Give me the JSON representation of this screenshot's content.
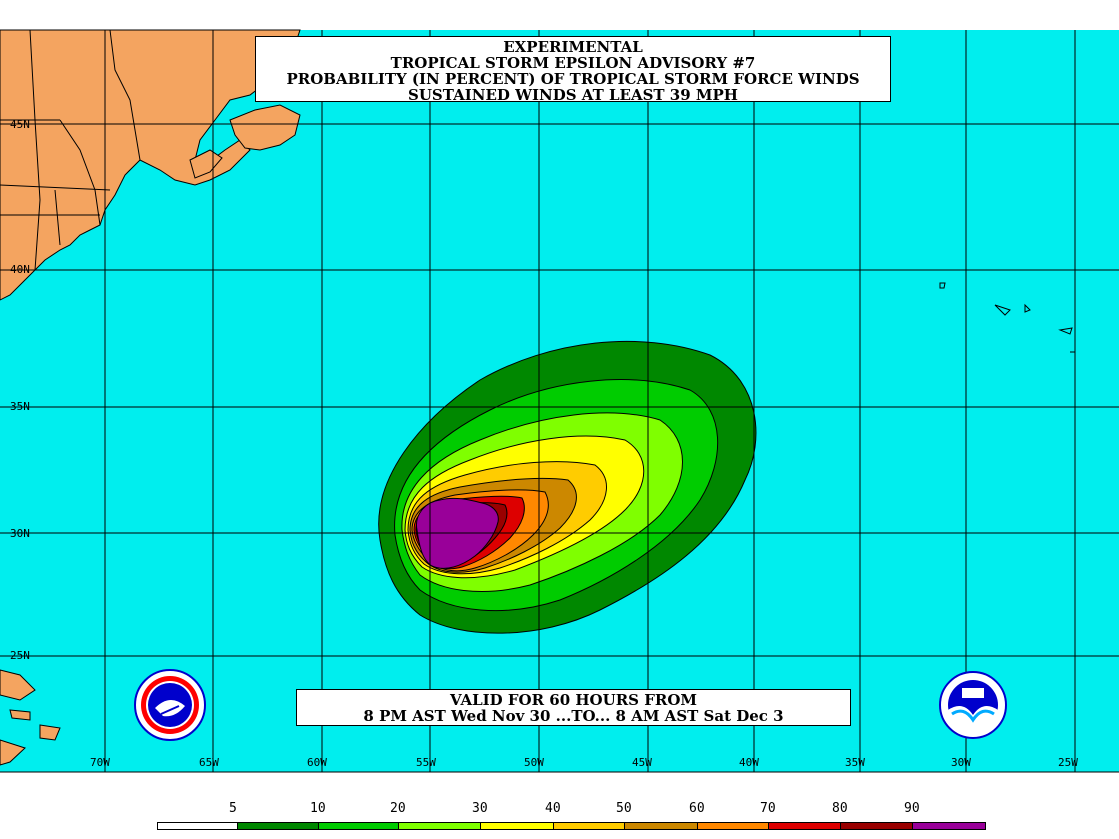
{
  "title": {
    "line1": "EXPERIMENTAL",
    "line2": "TROPICAL STORM EPSILON ADVISORY #7",
    "line3": "PROBABILITY (IN PERCENT) OF TROPICAL STORM FORCE WINDS",
    "line4": "SUSTAINED WINDS AT LEAST 39 MPH"
  },
  "valid": {
    "line1": "VALID FOR 60 HOURS FROM",
    "line2": "8 PM AST Wed Nov 30 ...TO... 8 AM AST Sat Dec 3"
  },
  "latitudes": [
    "45N",
    "40N",
    "35N",
    "30N",
    "25N"
  ],
  "longitudes": [
    "70W",
    "65W",
    "60W",
    "55W",
    "50W",
    "45W",
    "40W",
    "35W",
    "30W",
    "25W"
  ],
  "scale": {
    "labels": [
      "5",
      "10",
      "20",
      "30",
      "40",
      "50",
      "60",
      "70",
      "80",
      "90"
    ],
    "colors": [
      "#ffffff",
      "#008800",
      "#00cc00",
      "#7fff00",
      "#ffff00",
      "#ffcc00",
      "#cc8800",
      "#ff8800",
      "#dd0000",
      "#990000",
      "#990099"
    ]
  },
  "colors": {
    "ocean": "#00eeee",
    "land": "#f4a460"
  },
  "logos": {
    "left": "nws-logo",
    "right": "noaa-logo"
  }
}
